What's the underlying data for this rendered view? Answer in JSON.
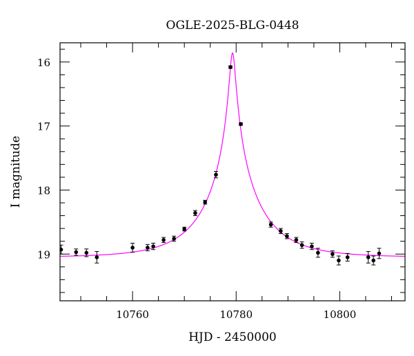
{
  "chart_data": {
    "type": "scatter",
    "title": "OGLE-2025-BLG-0448",
    "xlabel": "HJD - 2450000",
    "ylabel": "I magnitude",
    "xlim": [
      10746.0,
      10812.6
    ],
    "ylim": [
      19.73,
      15.7
    ],
    "y_inverted": true,
    "x_ticks": [
      10760,
      10780,
      10800
    ],
    "y_ticks": [
      16,
      17,
      18,
      19
    ],
    "grid": false,
    "colors": {
      "points": "#000000",
      "model": "#ff00ff"
    },
    "points": {
      "x": [
        10746.2,
        10749.1,
        10751.1,
        10753.1,
        10760.0,
        10762.9,
        10764.0,
        10766.0,
        10768.0,
        10770.0,
        10772.1,
        10774.0,
        10776.1,
        10778.9,
        10780.9,
        10786.7,
        10788.6,
        10789.8,
        10791.6,
        10792.7,
        10794.6,
        10795.8,
        10798.6,
        10799.8,
        10801.5,
        10805.5,
        10806.5,
        10807.6
      ],
      "y": [
        18.93,
        18.97,
        18.98,
        19.05,
        18.9,
        18.9,
        18.88,
        18.78,
        18.76,
        18.61,
        18.36,
        18.19,
        17.76,
        16.08,
        16.97,
        18.54,
        18.64,
        18.72,
        18.78,
        18.86,
        18.88,
        18.98,
        19.0,
        19.1,
        19.05,
        19.05,
        19.1,
        18.99
      ],
      "err": [
        0.07,
        0.05,
        0.06,
        0.09,
        0.07,
        0.05,
        0.05,
        0.04,
        0.04,
        0.03,
        0.04,
        0.03,
        0.05,
        0.02,
        0.02,
        0.04,
        0.04,
        0.04,
        0.04,
        0.05,
        0.05,
        0.07,
        0.05,
        0.07,
        0.06,
        0.09,
        0.07,
        0.08
      ]
    },
    "model": {
      "name": "",
      "t0": 10779.3,
      "u0": 0.053,
      "tE": 10.5,
      "baseline": 19.05
    }
  }
}
